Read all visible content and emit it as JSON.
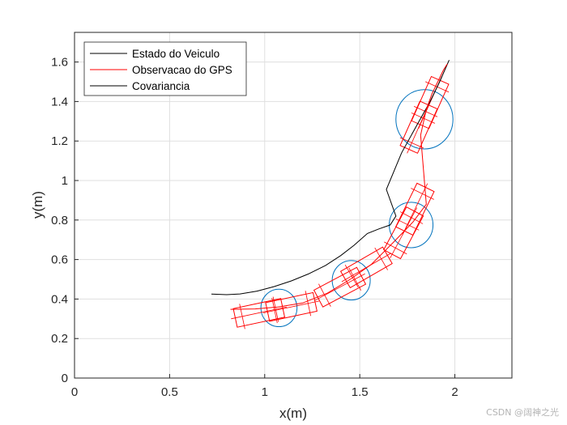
{
  "chart_data": {
    "type": "line",
    "title": "",
    "xlabel": "x(m)",
    "ylabel": "y(m)",
    "xlim": [
      0,
      2.3
    ],
    "ylim": [
      0,
      1.75
    ],
    "xticks": [
      0,
      0.5,
      1,
      1.5,
      2
    ],
    "xtick_labels": [
      "0",
      "0.5",
      "1",
      "1.5",
      "2"
    ],
    "yticks": [
      0,
      0.2,
      0.4,
      0.6,
      0.8,
      1,
      1.2,
      1.4,
      1.6
    ],
    "ytick_labels": [
      "0",
      "0.2",
      "0.4",
      "0.6",
      "0.8",
      "1",
      "1.2",
      "1.4",
      "1.6"
    ],
    "grid": true,
    "legend_position": "top-left",
    "series": [
      {
        "name": "Estado do Veiculo",
        "color": "#000000",
        "x": [
          0.72,
          0.8,
          0.87,
          0.96,
          1.05,
          1.14,
          1.23,
          1.32,
          1.4,
          1.47,
          1.54,
          1.6,
          1.66,
          1.69,
          1.64,
          1.72,
          1.8,
          1.87,
          1.92,
          1.97
        ],
        "y": [
          0.425,
          0.422,
          0.426,
          0.44,
          0.463,
          0.492,
          0.527,
          0.57,
          0.62,
          0.672,
          0.732,
          0.755,
          0.775,
          0.82,
          0.955,
          1.14,
          1.28,
          1.4,
          1.5,
          1.61
        ]
      },
      {
        "name": "Observacao do GPS",
        "color": "#ff0000",
        "x": [
          0.82,
          0.95,
          1.07,
          1.2,
          1.33,
          1.45,
          1.56,
          1.68,
          1.78,
          1.85,
          1.82,
          1.85,
          1.88,
          1.94,
          1.96
        ],
        "y": [
          0.348,
          0.35,
          0.36,
          0.38,
          0.43,
          0.5,
          0.575,
          0.69,
          0.79,
          0.88,
          1.23,
          1.36,
          1.44,
          1.56,
          1.59
        ]
      },
      {
        "name": "Covariancia",
        "color": "#000000"
      }
    ],
    "covariance_circles": {
      "color": "#0072bd",
      "items": [
        {
          "cx": 1.075,
          "cy": 0.355,
          "r": 0.095
        },
        {
          "cx": 1.455,
          "cy": 0.495,
          "r": 0.1
        },
        {
          "cx": 1.77,
          "cy": 0.775,
          "r": 0.115
        },
        {
          "cx": 1.84,
          "cy": 1.31,
          "r": 0.15
        }
      ]
    },
    "gps_error_boxes": {
      "color": "#ff0000",
      "items": [
        {
          "cx": 0.97,
          "cy": 0.33,
          "half_w": 0.05,
          "half_l": 0.15,
          "angle_deg": 12
        },
        {
          "cx": 1.14,
          "cy": 0.36,
          "half_w": 0.05,
          "half_l": 0.15,
          "angle_deg": 12
        },
        {
          "cx": 1.395,
          "cy": 0.46,
          "half_w": 0.05,
          "half_l": 0.15,
          "angle_deg": 28
        },
        {
          "cx": 1.535,
          "cy": 0.56,
          "half_w": 0.05,
          "half_l": 0.15,
          "angle_deg": 30
        },
        {
          "cx": 1.73,
          "cy": 0.735,
          "half_w": 0.05,
          "half_l": 0.15,
          "angle_deg": 62
        },
        {
          "cx": 1.79,
          "cy": 0.855,
          "half_w": 0.05,
          "half_l": 0.15,
          "angle_deg": 64
        },
        {
          "cx": 1.81,
          "cy": 1.27,
          "half_w": 0.05,
          "half_l": 0.15,
          "angle_deg": 66
        },
        {
          "cx": 1.87,
          "cy": 1.395,
          "half_w": 0.05,
          "half_l": 0.15,
          "angle_deg": 66
        }
      ]
    }
  },
  "watermark": "CSDN @阔神之光"
}
